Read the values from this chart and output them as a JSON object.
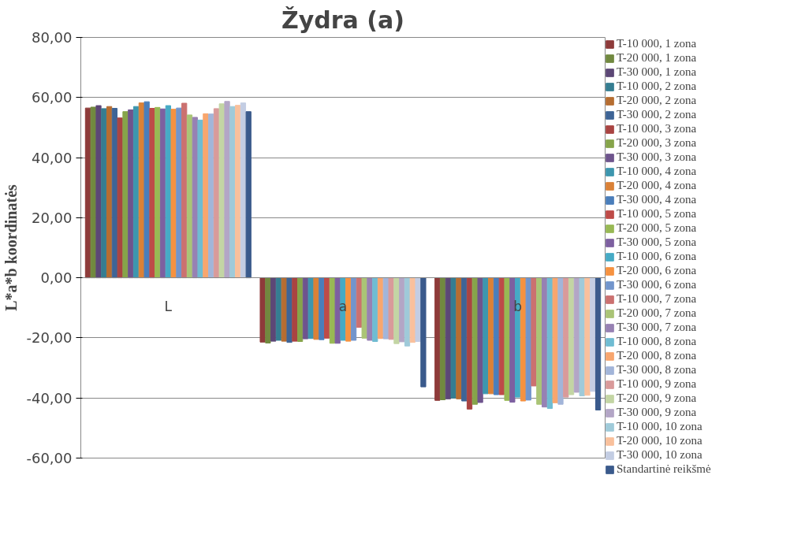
{
  "chart_data": {
    "type": "bar",
    "title": "Žydra (a)",
    "ylabel": "L*a*b koordinatės",
    "categories": [
      "L",
      "a",
      "b"
    ],
    "ylim": [
      -60,
      80
    ],
    "yticks": [
      {
        "value": -60,
        "label": "-60,00"
      },
      {
        "value": -40,
        "label": "-40,00"
      },
      {
        "value": -20,
        "label": "-20,00"
      },
      {
        "value": 0,
        "label": "0,00"
      },
      {
        "value": 20,
        "label": "20,00"
      },
      {
        "value": 40,
        "label": "40,00"
      },
      {
        "value": 60,
        "label": "60,00"
      },
      {
        "value": 80,
        "label": "80,00"
      }
    ],
    "grid": "y",
    "legend": "right",
    "series": [
      {
        "name": "T-10 000, 1 zona",
        "color": "#8e3b3a",
        "values": [
          56.5,
          -21.4,
          -40.8
        ]
      },
      {
        "name": "T-20 000, 1 zona",
        "color": "#71893f",
        "values": [
          56.8,
          -21.7,
          -40.6
        ]
      },
      {
        "name": "T-30 000, 1 zona",
        "color": "#5c4776",
        "values": [
          57.3,
          -21.1,
          -40.3
        ]
      },
      {
        "name": "T-10 000, 2 zona",
        "color": "#357d91",
        "values": [
          56.3,
          -20.8,
          -40.0
        ]
      },
      {
        "name": "T-20 000, 2 zona",
        "color": "#b66d31",
        "values": [
          57.0,
          -21.1,
          -40.3
        ]
      },
      {
        "name": "T-30 000, 2 zona",
        "color": "#3e6496",
        "values": [
          56.4,
          -21.5,
          -41.0
        ]
      },
      {
        "name": "T-10 000, 3 zona",
        "color": "#a94442",
        "values": [
          53.2,
          -21.1,
          -43.7
        ]
      },
      {
        "name": "T-20 000, 3 zona",
        "color": "#86a44a",
        "values": [
          55.3,
          -21.2,
          -42.1
        ]
      },
      {
        "name": "T-30 000, 3 zona",
        "color": "#6e548d",
        "values": [
          55.9,
          -20.3,
          -41.5
        ]
      },
      {
        "name": "T-10 000, 4 zona",
        "color": "#3d96ae",
        "values": [
          57.0,
          -20.2,
          -38.6
        ]
      },
      {
        "name": "T-20 000, 4 zona",
        "color": "#da8137",
        "values": [
          58.2,
          -20.5,
          -38.6
        ]
      },
      {
        "name": "T-30 000, 4 zona",
        "color": "#4a7ebb",
        "values": [
          58.6,
          -20.6,
          -38.9
        ]
      },
      {
        "name": "T-10 000, 5 zona",
        "color": "#be4b48",
        "values": [
          56.4,
          -20.1,
          -38.9
        ]
      },
      {
        "name": "T-20 000, 5 zona",
        "color": "#98b954",
        "values": [
          56.7,
          -21.8,
          -40.8
        ]
      },
      {
        "name": "T-30 000, 5 zona",
        "color": "#7d60a0",
        "values": [
          56.2,
          -21.8,
          -41.4
        ]
      },
      {
        "name": "T-10 000, 6 zona",
        "color": "#46aac5",
        "values": [
          57.3,
          -20.8,
          -39.7
        ]
      },
      {
        "name": "T-20 000, 6 zona",
        "color": "#f69240",
        "values": [
          56.1,
          -21.1,
          -41.0
        ]
      },
      {
        "name": "T-30 000, 6 zona",
        "color": "#7295cc",
        "values": [
          56.5,
          -20.8,
          -40.7
        ]
      },
      {
        "name": "T-10 000, 7 zona",
        "color": "#cb7170",
        "values": [
          58.1,
          -16.5,
          -36.0
        ]
      },
      {
        "name": "T-20 000, 7 zona",
        "color": "#aac476",
        "values": [
          54.2,
          -20.1,
          -42.1
        ]
      },
      {
        "name": "T-30 000, 7 zona",
        "color": "#9781b3",
        "values": [
          53.4,
          -20.8,
          -43.0
        ]
      },
      {
        "name": "T-10 000, 8 zona",
        "color": "#6fbcd2",
        "values": [
          52.5,
          -21.2,
          -43.5
        ]
      },
      {
        "name": "T-20 000, 8 zona",
        "color": "#f8a66e",
        "values": [
          54.6,
          -20.2,
          -41.6
        ]
      },
      {
        "name": "T-30 000, 8 zona",
        "color": "#a2b5d9",
        "values": [
          54.5,
          -20.3,
          -42.1
        ]
      },
      {
        "name": "T-10 000, 9 zona",
        "color": "#d99a9a",
        "values": [
          56.3,
          -20.5,
          -39.7
        ]
      },
      {
        "name": "T-20 000, 9 zona",
        "color": "#c3d5a4",
        "values": [
          57.9,
          -21.9,
          -38.9
        ]
      },
      {
        "name": "T-30 000, 9 zona",
        "color": "#b3a6c6",
        "values": [
          58.7,
          -21.3,
          -38.1
        ]
      },
      {
        "name": "T-10 000, 10 zona",
        "color": "#9fcad9",
        "values": [
          57.0,
          -22.7,
          -39.3
        ]
      },
      {
        "name": "T-20 000, 10 zona",
        "color": "#f9c09c",
        "values": [
          57.4,
          -21.5,
          -39.1
        ]
      },
      {
        "name": "T-30 000, 10 zona",
        "color": "#c3cde3",
        "values": [
          58.2,
          -21.2,
          -37.8
        ]
      },
      {
        "name": "Standartinė reikšmė",
        "color": "#3a5a8c",
        "values": [
          55.3,
          -36.3,
          -44.0
        ]
      }
    ]
  }
}
